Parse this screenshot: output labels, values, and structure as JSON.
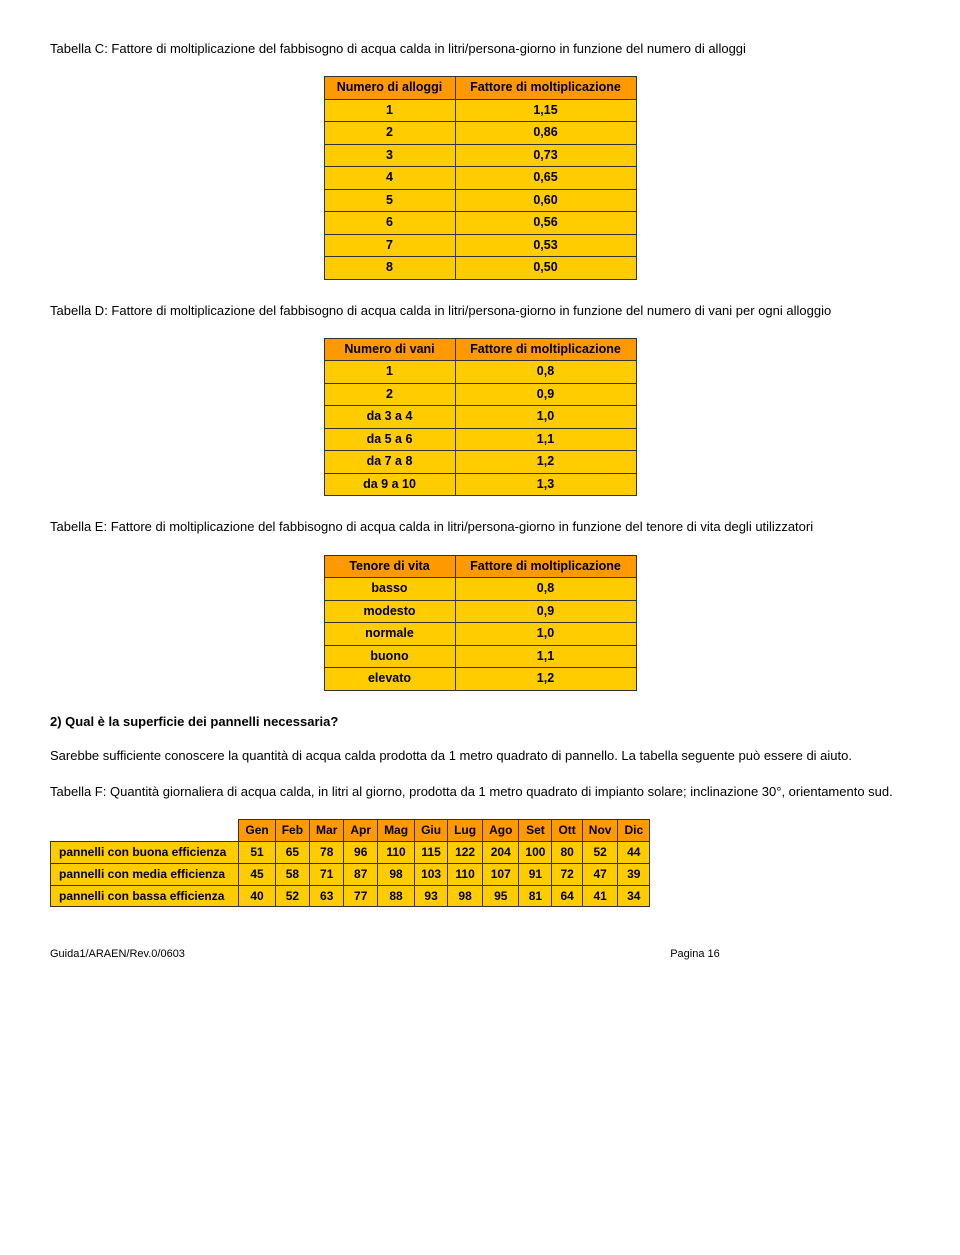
{
  "tabC": {
    "title": "Tabella C:  Fattore di moltiplicazione del fabbisogno di acqua calda in litri/persona-giorno in funzione del numero di alloggi",
    "col1": "Numero di alloggi",
    "col2": "Fattore di moltiplicazione",
    "rows": [
      {
        "a": "1",
        "b": "1,15"
      },
      {
        "a": "2",
        "b": "0,86"
      },
      {
        "a": "3",
        "b": "0,73"
      },
      {
        "a": "4",
        "b": "0,65"
      },
      {
        "a": "5",
        "b": "0,60"
      },
      {
        "a": "6",
        "b": "0,56"
      },
      {
        "a": "7",
        "b": "0,53"
      },
      {
        "a": "8",
        "b": "0,50"
      }
    ]
  },
  "tabD": {
    "title": "Tabella D:  Fattore di moltiplicazione del fabbisogno di acqua calda in litri/persona-giorno in funzione del numero di vani per ogni alloggio",
    "col1": "Numero di vani",
    "col2": "Fattore di moltiplicazione",
    "rows": [
      {
        "a": "1",
        "b": "0,8"
      },
      {
        "a": "2",
        "b": "0,9"
      },
      {
        "a": "da 3 a 4",
        "b": "1,0"
      },
      {
        "a": "da 5 a 6",
        "b": "1,1"
      },
      {
        "a": "da 7 a 8",
        "b": "1,2"
      },
      {
        "a": "da 9 a 10",
        "b": "1,3"
      }
    ]
  },
  "tabE": {
    "title": "Tabella E:  Fattore di moltiplicazione del fabbisogno di acqua calda in litri/persona-giorno in funzione del tenore di vita degli utilizzatori",
    "col1": "Tenore di vita",
    "col2": "Fattore di moltiplicazione",
    "rows": [
      {
        "a": "basso",
        "b": "0,8"
      },
      {
        "a": "modesto",
        "b": "0,9"
      },
      {
        "a": "normale",
        "b": "1,0"
      },
      {
        "a": "buono",
        "b": "1,1"
      },
      {
        "a": "elevato",
        "b": "1,2"
      }
    ]
  },
  "question2": "2) Qual è la superficie dei pannelli necessaria?",
  "para_after_q": "Sarebbe sufficiente conoscere la quantità di acqua calda prodotta da 1 metro quadrato di pannello.  La tabella seguente può essere di aiuto.",
  "tabF": {
    "title": "Tabella F:  Quantità giornaliera di acqua calda, in litri al giorno, prodotta da 1 metro quadrato di impianto solare; inclinazione 30°, orientamento sud.",
    "months": [
      "Gen",
      "Feb",
      "Mar",
      "Apr",
      "Mag",
      "Giu",
      "Lug",
      "Ago",
      "Set",
      "Ott",
      "Nov",
      "Dic"
    ],
    "rows": [
      {
        "label": "pannelli con buona efficienza",
        "vals": [
          "51",
          "65",
          "78",
          "96",
          "110",
          "115",
          "122",
          "204",
          "100",
          "80",
          "52",
          "44"
        ]
      },
      {
        "label": "pannelli con media efficienza",
        "vals": [
          "45",
          "58",
          "71",
          "87",
          "98",
          "103",
          "110",
          "107",
          "91",
          "72",
          "47",
          "39"
        ]
      },
      {
        "label": "pannelli con bassa efficienza",
        "vals": [
          "40",
          "52",
          "63",
          "77",
          "88",
          "93",
          "98",
          "95",
          "81",
          "64",
          "41",
          "34"
        ]
      }
    ]
  },
  "footer_left": "Guida1/ARAEN/Rev.0/0603",
  "footer_right": "Pagina 16",
  "colors": {
    "header_bg": "#ff9900",
    "cell_bg": "#ffcc00",
    "border": "#333333",
    "text": "#000000",
    "page_bg": "#ffffff"
  }
}
